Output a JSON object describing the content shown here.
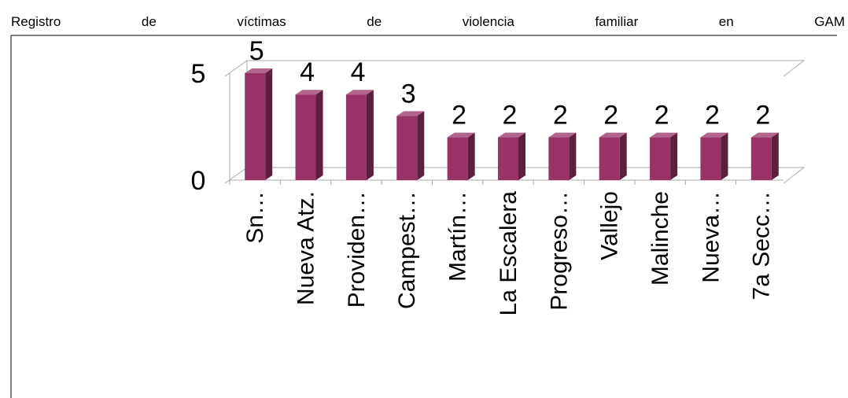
{
  "chart_data": {
    "type": "bar3d",
    "title": "Registro de víctimas de violencia familiar en GAM",
    "categories": [
      "Sn…",
      "Nueva Atz.",
      "Providen…",
      "Campest…",
      "Martín…",
      "La Escalera",
      "Progreso…",
      "Vallejo",
      "Malinche",
      "Nueva…",
      "7a Secc…"
    ],
    "values": [
      5,
      4,
      4,
      3,
      2,
      2,
      2,
      2,
      2,
      2,
      2
    ],
    "color": "#993366",
    "ylim": [
      0,
      5
    ],
    "yticks": [
      0,
      5
    ],
    "grid": true
  }
}
